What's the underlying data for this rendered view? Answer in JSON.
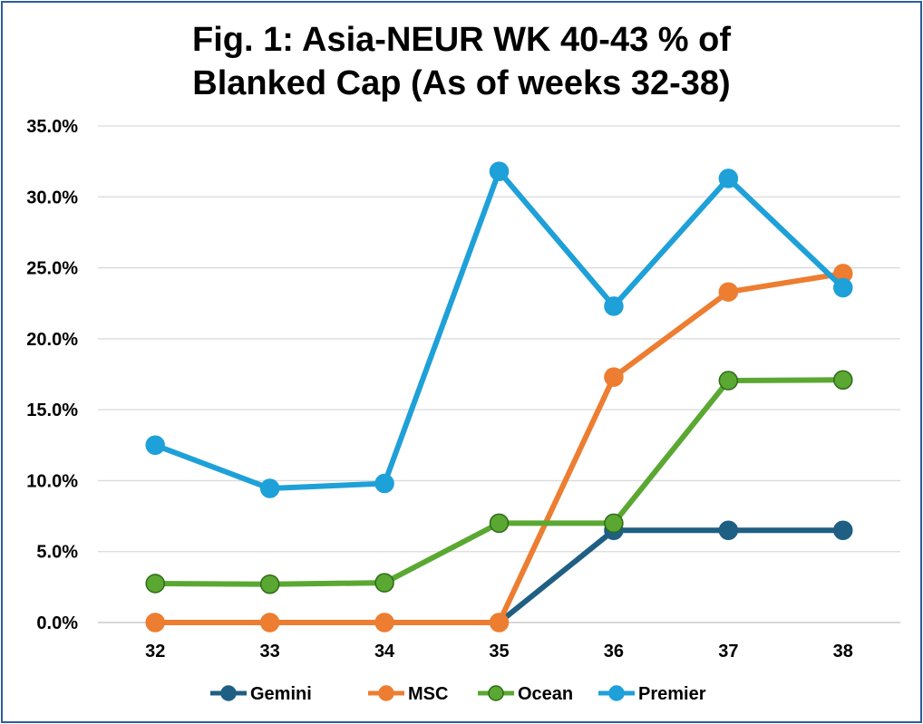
{
  "chart_data": {
    "type": "line",
    "title_lines": [
      "Fig. 1: Asia-NEUR WK 40-43 % of",
      "Blanked Cap (As of weeks 32-38)"
    ],
    "xlabel": "",
    "ylabel": "",
    "categories": [
      "32",
      "33",
      "34",
      "35",
      "36",
      "37",
      "38"
    ],
    "ylim": [
      0,
      35
    ],
    "yticks": [
      0,
      5,
      10,
      15,
      20,
      25,
      30,
      35
    ],
    "ytick_labels": [
      "0.0%",
      "5.0%",
      "10.0%",
      "15.0%",
      "20.0%",
      "25.0%",
      "30.0%",
      "35.0%"
    ],
    "grid": true,
    "legend_position": "bottom",
    "series": [
      {
        "name": "Gemini",
        "color": "#1f5f83",
        "marker_edge": "#1f5f83",
        "values": [
          0,
          0,
          0,
          0,
          6.5,
          6.5,
          6.5
        ]
      },
      {
        "name": "MSC",
        "color": "#ed7d31",
        "marker_edge": "#ed7d31",
        "values": [
          0,
          0,
          0,
          0,
          17.3,
          23.3,
          24.6
        ]
      },
      {
        "name": "Ocean",
        "color": "#5aa832",
        "marker_edge": "#2e6b17",
        "values": [
          2.75,
          2.7,
          2.8,
          7.0,
          7.0,
          17.05,
          17.1
        ]
      },
      {
        "name": "Premier",
        "color": "#1ea0d8",
        "marker_edge": "#1ea0d8",
        "values": [
          12.5,
          9.45,
          9.8,
          31.8,
          22.3,
          31.3,
          23.6
        ]
      }
    ]
  }
}
